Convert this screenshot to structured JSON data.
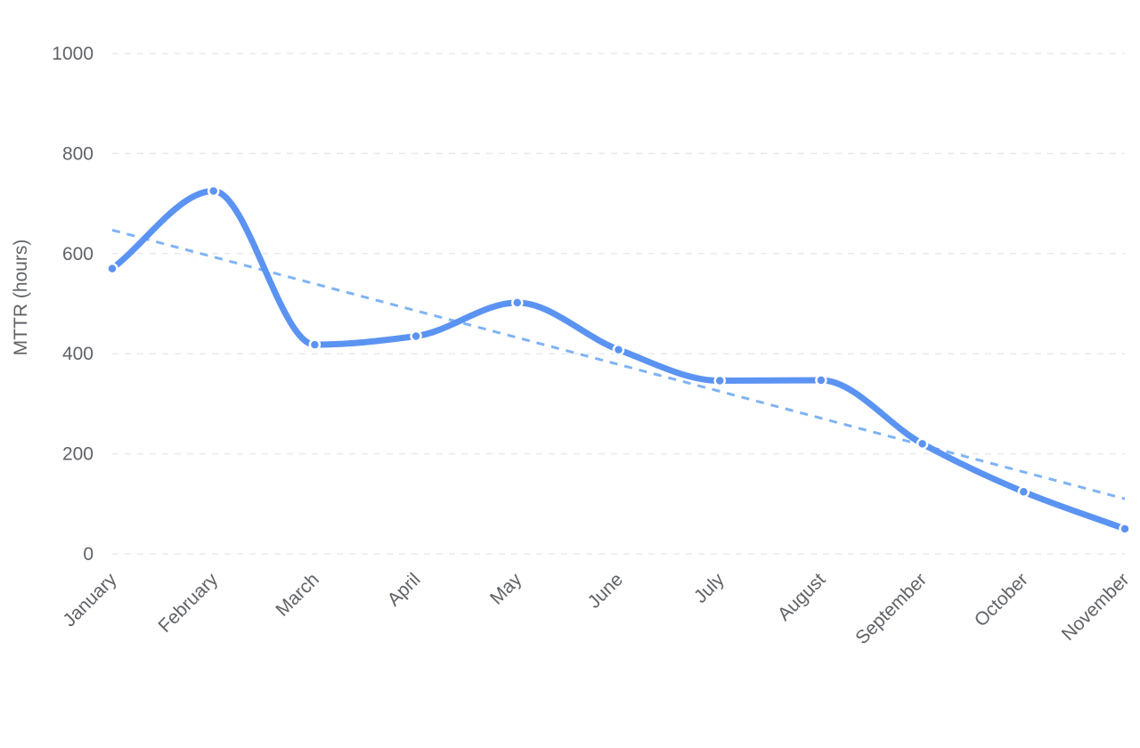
{
  "chart_data": {
    "type": "line",
    "categories": [
      "January",
      "February",
      "March",
      "April",
      "May",
      "June",
      "July",
      "August",
      "September",
      "October",
      "November"
    ],
    "series": [
      {
        "values": [
          570,
          725,
          418,
          435,
          502,
          408,
          346,
          347,
          220,
          124,
          50
        ],
        "color": "#5b93f2",
        "smooth": true,
        "markers": true
      }
    ],
    "trendline": {
      "type": "linear",
      "start": 647,
      "end": 110,
      "color": "#7fb3f5",
      "style": "dashed"
    },
    "title": "",
    "xlabel": "",
    "ylabel": "MTTR (hours)",
    "ylim": [
      0,
      1000
    ],
    "yticks": [
      0,
      200,
      400,
      600,
      800,
      1000
    ],
    "grid": true,
    "legend": "none",
    "x_tick_rotation": -45
  }
}
